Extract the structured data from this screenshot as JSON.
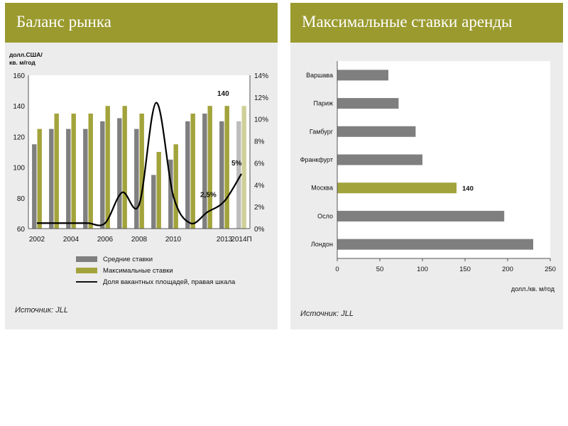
{
  "colors": {
    "header": "#9a9a2f",
    "avg": "#7f7f7f",
    "max": "#a3a33c",
    "max_forecast": "#cfcf99",
    "avg_forecast": "#bdbdbd",
    "line": "#000000"
  },
  "left": {
    "title": "Баланс рынка",
    "ylabel_line1": "долл.США/",
    "ylabel_line2": "кв. м/год",
    "source": "Источник: JLL",
    "legend": {
      "avg": "Средние ставки",
      "max": "Максимальные ставки",
      "vacancy": "Доля вакантных площадей, правая шкала"
    },
    "annotations": {
      "a140": "140",
      "a5": "5%",
      "a25": "2,5%"
    }
  },
  "right": {
    "title": "Максимальные ставки аренды",
    "xlabel": "долл./кв. м/год",
    "source": "Источник: JLL",
    "annotation_moscow": "140"
  },
  "chart_data": [
    {
      "type": "bar",
      "title": "Баланс рынка",
      "ylabel": "долл.США/ кв. м/год",
      "ylim": [
        60,
        160
      ],
      "y2lim": [
        0,
        14
      ],
      "yticks": [
        60,
        80,
        100,
        120,
        140,
        160
      ],
      "y2ticks": [
        "0%",
        "2%",
        "4%",
        "6%",
        "8%",
        "10%",
        "12%",
        "14%"
      ],
      "xtick_labels": [
        "2002",
        "2004",
        "2006",
        "2008",
        "2010",
        "2013",
        "2014П"
      ],
      "categories": [
        "2002",
        "2003",
        "2004",
        "2005",
        "2006",
        "2007",
        "2008",
        "2009",
        "2010",
        "2011",
        "2012",
        "2013",
        "2014П"
      ],
      "series": [
        {
          "name": "Средние ставки",
          "values": [
            115,
            125,
            125,
            125,
            130,
            132,
            125,
            95,
            105,
            130,
            135,
            130,
            130
          ]
        },
        {
          "name": "Максимальные ставки",
          "values": [
            125,
            135,
            135,
            135,
            140,
            140,
            135,
            110,
            115,
            135,
            140,
            140,
            140
          ]
        },
        {
          "name": "Доля вакантных площадей, правая шкала",
          "axis": "right",
          "values": [
            0.5,
            0.5,
            0.5,
            0.5,
            0.5,
            3.3,
            2.2,
            11.5,
            3.0,
            0.5,
            1.5,
            2.5,
            5.0
          ]
        }
      ],
      "legend_position": "bottom"
    },
    {
      "type": "bar",
      "orientation": "horizontal",
      "title": "Максимальные ставки аренды",
      "xlabel": "долл./кв. м/год",
      "xlim": [
        0,
        250
      ],
      "xticks": [
        0,
        50,
        100,
        150,
        200,
        250
      ],
      "categories": [
        "Варшава",
        "Париж",
        "Гамбург",
        "Франкфурт",
        "Москва",
        "Осло",
        "Лондон"
      ],
      "values": [
        60,
        72,
        92,
        100,
        140,
        196,
        230
      ],
      "highlight": "Москва"
    }
  ]
}
